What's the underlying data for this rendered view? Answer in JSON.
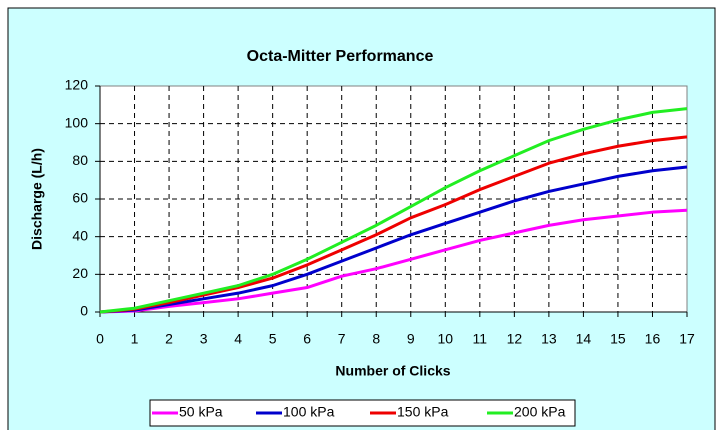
{
  "chart_data": {
    "type": "line",
    "title": "Octa-Mitter Performance",
    "x_label": "Number of Clicks",
    "y_label": "Discharge (L/h)",
    "x": [
      0,
      1,
      2,
      3,
      4,
      5,
      6,
      7,
      8,
      9,
      10,
      11,
      12,
      13,
      14,
      15,
      16,
      17
    ],
    "xlim": [
      0,
      17
    ],
    "xticks": [
      0,
      1,
      2,
      3,
      4,
      5,
      6,
      7,
      8,
      9,
      10,
      11,
      12,
      13,
      14,
      15,
      16,
      17
    ],
    "ylim": [
      0,
      120
    ],
    "yticks": [
      0,
      20,
      40,
      60,
      80,
      100,
      120
    ],
    "grid": true,
    "legend": "bottom",
    "series": [
      {
        "name": "50 kPa",
        "color": "#ff00ff",
        "values": [
          0,
          0.5,
          3,
          5,
          7,
          10,
          13,
          19,
          23,
          28,
          33,
          38,
          42,
          46,
          49,
          51,
          53,
          54
        ]
      },
      {
        "name": "100 kPa",
        "color": "#0000cc",
        "values": [
          0,
          1,
          4,
          7,
          10,
          14,
          20,
          27,
          34,
          41,
          47,
          53,
          59,
          64,
          68,
          72,
          75,
          77
        ]
      },
      {
        "name": "150 kPa",
        "color": "#ee0000",
        "values": [
          0,
          1.5,
          5,
          9,
          13,
          18,
          25,
          33,
          41,
          50,
          57,
          65,
          72,
          79,
          84,
          88,
          91,
          93
        ]
      },
      {
        "name": "200 kPa",
        "color": "#22ee22",
        "values": [
          0,
          2,
          6,
          10,
          14,
          20,
          28,
          37,
          46,
          56,
          66,
          75,
          83,
          91,
          97,
          102,
          106,
          108
        ]
      }
    ]
  }
}
